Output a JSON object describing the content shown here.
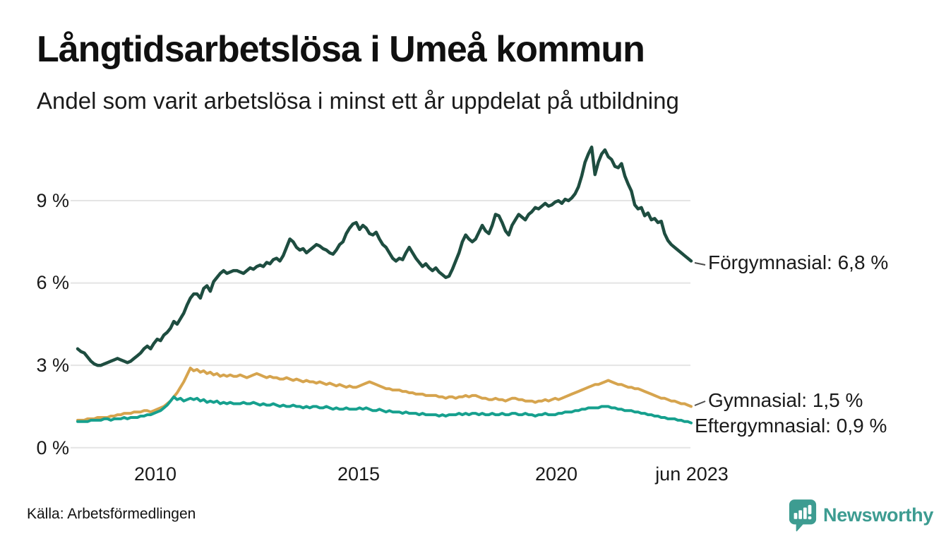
{
  "header": {
    "title": "Långtidsarbetslösa i Umeå kommun",
    "subtitle": "Andel som varit arbetslösa i minst ett år uppdelat på utbildning"
  },
  "footer": {
    "source": "Källa: Arbetsförmedlingen",
    "brand": "Newsworthy"
  },
  "colors": {
    "forgymnasial": "#1e4d40",
    "gymnasial": "#d6a44e",
    "eftergymnasial": "#16a08e",
    "gridline": "#e4e4e4",
    "text": "#1a1a1a",
    "brand_teal": "#3d9c91"
  },
  "chart_data": {
    "type": "line",
    "title": "Långtidsarbetslösa i Umeå kommun",
    "subtitle": "Andel som varit arbetslösa i minst ett år uppdelat på utbildning",
    "unit": "%",
    "x_start": "2008-01",
    "x_end": "2023-06",
    "x_interval": "monthly",
    "grid": "horizontal",
    "legend_position": "end-of-line-labels",
    "ylim": [
      0,
      11.5
    ],
    "y_ticks": [
      {
        "value": 9,
        "label": "9 %"
      },
      {
        "value": 6,
        "label": "6 %"
      },
      {
        "value": 3,
        "label": "3 %"
      },
      {
        "value": 0,
        "label": "0 %"
      }
    ],
    "x_ticks": [
      {
        "t": 2010.0,
        "label": "2010"
      },
      {
        "t": 2015.0,
        "label": "2015"
      },
      {
        "t": 2020.0,
        "label": "2020"
      },
      {
        "t": 2023.42,
        "label": "jun 2023"
      }
    ],
    "series": [
      {
        "name": "Förgymnasial",
        "color": "#1e4d40",
        "line_width": 4.5,
        "last_value_label": "6,8 %",
        "end_label": "Förgymnasial: 6,8 %",
        "values": [
          3.6,
          3.5,
          3.45,
          3.3,
          3.15,
          3.05,
          3.0,
          3.0,
          3.05,
          3.1,
          3.15,
          3.2,
          3.25,
          3.2,
          3.15,
          3.1,
          3.15,
          3.25,
          3.35,
          3.45,
          3.6,
          3.7,
          3.6,
          3.8,
          3.95,
          3.9,
          4.1,
          4.2,
          4.35,
          4.6,
          4.5,
          4.7,
          4.9,
          5.2,
          5.45,
          5.6,
          5.6,
          5.45,
          5.8,
          5.9,
          5.7,
          6.05,
          6.2,
          6.35,
          6.45,
          6.35,
          6.4,
          6.45,
          6.45,
          6.4,
          6.35,
          6.45,
          6.55,
          6.5,
          6.6,
          6.65,
          6.6,
          6.75,
          6.7,
          6.85,
          6.9,
          6.8,
          7.0,
          7.3,
          7.6,
          7.5,
          7.3,
          7.2,
          7.25,
          7.1,
          7.2,
          7.3,
          7.4,
          7.35,
          7.25,
          7.2,
          7.1,
          7.05,
          7.2,
          7.4,
          7.5,
          7.8,
          8.0,
          8.15,
          8.2,
          7.95,
          8.1,
          8.0,
          7.8,
          7.75,
          7.85,
          7.6,
          7.4,
          7.3,
          7.1,
          6.9,
          6.8,
          6.9,
          6.85,
          7.1,
          7.3,
          7.1,
          6.9,
          6.75,
          6.6,
          6.7,
          6.55,
          6.45,
          6.55,
          6.4,
          6.3,
          6.2,
          6.25,
          6.5,
          6.8,
          7.1,
          7.5,
          7.75,
          7.6,
          7.5,
          7.6,
          7.85,
          8.1,
          7.9,
          7.8,
          8.1,
          8.5,
          8.45,
          8.2,
          7.9,
          7.75,
          8.1,
          8.3,
          8.5,
          8.4,
          8.3,
          8.5,
          8.6,
          8.75,
          8.7,
          8.8,
          8.9,
          8.8,
          8.85,
          8.95,
          9.0,
          8.9,
          9.05,
          9.0,
          9.1,
          9.25,
          9.5,
          9.9,
          10.4,
          10.7,
          10.95,
          9.95,
          10.4,
          10.7,
          10.85,
          10.6,
          10.5,
          10.25,
          10.2,
          10.35,
          9.9,
          9.6,
          9.35,
          8.85,
          8.7,
          8.75,
          8.45,
          8.55,
          8.3,
          8.35,
          8.2,
          8.25,
          7.8,
          7.55,
          7.4,
          7.3,
          7.2,
          7.1,
          7.0,
          6.9,
          6.8
        ]
      },
      {
        "name": "Gymnasial",
        "color": "#d6a44e",
        "line_width": 4,
        "last_value_label": "1,5 %",
        "end_label": "Gymnasial: 1,5 %",
        "values": [
          1.0,
          1.0,
          1.0,
          1.05,
          1.05,
          1.05,
          1.1,
          1.1,
          1.1,
          1.1,
          1.15,
          1.15,
          1.2,
          1.2,
          1.25,
          1.25,
          1.25,
          1.3,
          1.3,
          1.3,
          1.35,
          1.35,
          1.3,
          1.35,
          1.4,
          1.45,
          1.5,
          1.6,
          1.7,
          1.85,
          2.0,
          2.2,
          2.4,
          2.65,
          2.9,
          2.8,
          2.85,
          2.75,
          2.8,
          2.7,
          2.75,
          2.65,
          2.7,
          2.6,
          2.65,
          2.6,
          2.65,
          2.6,
          2.6,
          2.65,
          2.6,
          2.55,
          2.6,
          2.65,
          2.7,
          2.65,
          2.6,
          2.55,
          2.6,
          2.55,
          2.55,
          2.5,
          2.5,
          2.55,
          2.5,
          2.45,
          2.5,
          2.45,
          2.4,
          2.45,
          2.4,
          2.4,
          2.35,
          2.4,
          2.35,
          2.3,
          2.35,
          2.3,
          2.25,
          2.3,
          2.25,
          2.2,
          2.25,
          2.2,
          2.2,
          2.25,
          2.3,
          2.35,
          2.4,
          2.35,
          2.3,
          2.25,
          2.2,
          2.15,
          2.15,
          2.1,
          2.1,
          2.1,
          2.05,
          2.05,
          2.0,
          2.0,
          1.95,
          1.95,
          1.95,
          1.9,
          1.9,
          1.9,
          1.9,
          1.85,
          1.85,
          1.8,
          1.85,
          1.85,
          1.8,
          1.85,
          1.85,
          1.9,
          1.85,
          1.9,
          1.9,
          1.85,
          1.8,
          1.8,
          1.75,
          1.75,
          1.8,
          1.75,
          1.75,
          1.7,
          1.75,
          1.8,
          1.8,
          1.75,
          1.75,
          1.7,
          1.7,
          1.7,
          1.65,
          1.7,
          1.7,
          1.75,
          1.7,
          1.75,
          1.8,
          1.75,
          1.8,
          1.85,
          1.9,
          1.95,
          2.0,
          2.05,
          2.1,
          2.15,
          2.2,
          2.25,
          2.3,
          2.3,
          2.35,
          2.4,
          2.45,
          2.4,
          2.35,
          2.3,
          2.3,
          2.25,
          2.2,
          2.2,
          2.15,
          2.15,
          2.1,
          2.05,
          2.0,
          1.95,
          1.9,
          1.85,
          1.8,
          1.8,
          1.75,
          1.7,
          1.7,
          1.65,
          1.6,
          1.6,
          1.55,
          1.5
        ]
      },
      {
        "name": "Eftergymnasial",
        "color": "#16a08e",
        "line_width": 4,
        "last_value_label": "0,9 %",
        "end_label": "Eftergymnasial: 0,9 %",
        "values": [
          0.95,
          0.95,
          0.95,
          0.95,
          1.0,
          1.0,
          1.0,
          1.0,
          1.05,
          1.05,
          1.0,
          1.05,
          1.05,
          1.05,
          1.1,
          1.05,
          1.1,
          1.1,
          1.1,
          1.15,
          1.15,
          1.2,
          1.2,
          1.25,
          1.3,
          1.35,
          1.45,
          1.55,
          1.7,
          1.85,
          1.75,
          1.8,
          1.7,
          1.75,
          1.8,
          1.75,
          1.8,
          1.7,
          1.75,
          1.65,
          1.7,
          1.65,
          1.7,
          1.6,
          1.65,
          1.6,
          1.65,
          1.6,
          1.6,
          1.6,
          1.65,
          1.6,
          1.6,
          1.65,
          1.6,
          1.55,
          1.6,
          1.55,
          1.55,
          1.6,
          1.55,
          1.5,
          1.55,
          1.5,
          1.5,
          1.55,
          1.5,
          1.5,
          1.45,
          1.5,
          1.45,
          1.5,
          1.5,
          1.45,
          1.45,
          1.5,
          1.45,
          1.4,
          1.45,
          1.4,
          1.4,
          1.45,
          1.4,
          1.4,
          1.4,
          1.45,
          1.4,
          1.45,
          1.4,
          1.35,
          1.35,
          1.4,
          1.35,
          1.3,
          1.35,
          1.3,
          1.3,
          1.3,
          1.25,
          1.3,
          1.25,
          1.25,
          1.25,
          1.2,
          1.25,
          1.2,
          1.2,
          1.2,
          1.2,
          1.15,
          1.2,
          1.15,
          1.2,
          1.2,
          1.2,
          1.25,
          1.2,
          1.25,
          1.2,
          1.25,
          1.25,
          1.2,
          1.25,
          1.2,
          1.2,
          1.25,
          1.2,
          1.2,
          1.25,
          1.2,
          1.2,
          1.25,
          1.25,
          1.2,
          1.2,
          1.25,
          1.2,
          1.2,
          1.15,
          1.2,
          1.2,
          1.25,
          1.2,
          1.2,
          1.2,
          1.25,
          1.25,
          1.3,
          1.3,
          1.3,
          1.35,
          1.35,
          1.4,
          1.4,
          1.45,
          1.45,
          1.45,
          1.45,
          1.5,
          1.5,
          1.5,
          1.45,
          1.45,
          1.4,
          1.4,
          1.35,
          1.35,
          1.35,
          1.3,
          1.3,
          1.25,
          1.25,
          1.2,
          1.2,
          1.15,
          1.15,
          1.1,
          1.1,
          1.05,
          1.05,
          1.05,
          1.0,
          1.0,
          0.95,
          0.95,
          0.9
        ]
      }
    ]
  }
}
